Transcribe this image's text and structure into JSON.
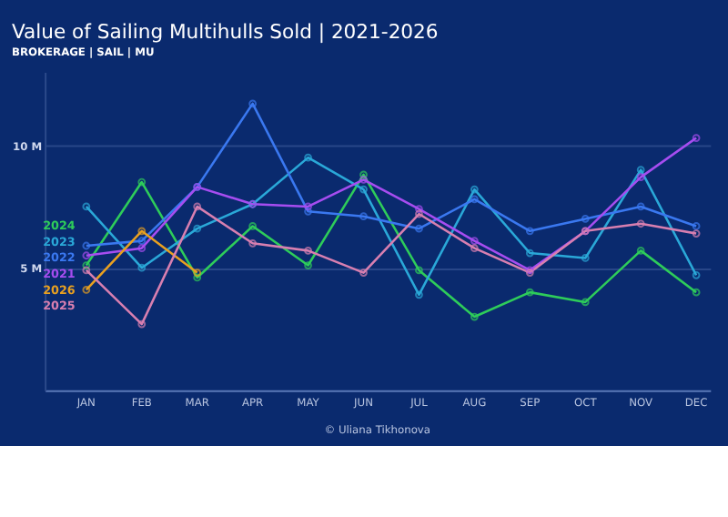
{
  "chart_data": {
    "type": "line",
    "title": "Value of Sailing Multihulls Sold | 2021-2026",
    "subtitle": "BROKERAGE | SAIL | MU",
    "categories": [
      "JAN",
      "FEB",
      "MAR",
      "APR",
      "MAY",
      "JUN",
      "JUL",
      "AUG",
      "SEP",
      "OCT",
      "NOV",
      "DEC"
    ],
    "series": [
      {
        "name": "2024",
        "color": "#2ecc5a",
        "values": [
          5.1,
          8.5,
          4.6,
          6.7,
          5.1,
          8.8,
          4.9,
          3.0,
          4.0,
          3.6,
          5.7,
          4.0
        ]
      },
      {
        "name": "2023",
        "color": "#2aa8d8",
        "values": [
          7.5,
          5.0,
          6.6,
          7.6,
          9.5,
          8.2,
          3.9,
          8.2,
          5.6,
          5.4,
          9.0,
          4.7
        ]
      },
      {
        "name": "2022",
        "color": "#3a78f0",
        "values": [
          5.9,
          6.1,
          8.3,
          11.7,
          7.3,
          7.1,
          6.6,
          7.8,
          6.5,
          7.0,
          7.5,
          6.7
        ]
      },
      {
        "name": "2021",
        "color": "#a64df0",
        "values": [
          5.5,
          5.8,
          8.3,
          7.6,
          7.5,
          8.6,
          7.4,
          6.1,
          4.9,
          6.5,
          8.7,
          10.3
        ]
      },
      {
        "name": "2026",
        "color": "#e8a020",
        "values": [
          4.1,
          6.5,
          4.8,
          null,
          null,
          null,
          null,
          null,
          null,
          null,
          null,
          null
        ]
      },
      {
        "name": "2025",
        "color": "#d87fb0",
        "values": [
          4.9,
          2.7,
          7.5,
          6.0,
          5.7,
          4.8,
          7.2,
          5.8,
          4.8,
          6.5,
          6.8,
          6.4
        ]
      }
    ],
    "ylim": [
      0,
      13
    ],
    "yticks": [
      {
        "value": 5,
        "label": "5 M"
      },
      {
        "value": 10,
        "label": "10 M"
      }
    ],
    "grid": "y",
    "marker": "circle",
    "line_style": "solid",
    "legend": false,
    "annotations": [
      "© Uliana Tikhonova"
    ]
  }
}
